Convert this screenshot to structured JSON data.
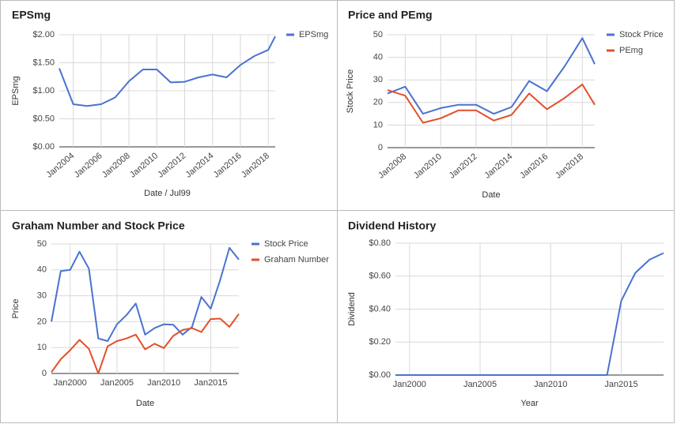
{
  "chart_data": [
    {
      "type": "line",
      "title": "EPSmg",
      "xlabel": "Date / Jul99",
      "ylabel": "EPSmg",
      "x": [
        2003,
        2004,
        2005,
        2006,
        2007,
        2008,
        2009,
        2010,
        2011,
        2012,
        2013,
        2014,
        2015,
        2016,
        2017,
        2018,
        2018.5
      ],
      "series": [
        {
          "name": "EPSmg",
          "color": "#4a72d1",
          "values": [
            1.4,
            0.76,
            0.73,
            0.76,
            0.88,
            1.17,
            1.38,
            1.38,
            1.15,
            1.16,
            1.24,
            1.29,
            1.24,
            1.46,
            1.62,
            1.73,
            1.97
          ]
        }
      ],
      "xlim": [
        2003,
        2018.5
      ],
      "xticks": [
        {
          "value": 2004,
          "label": "Jan2004"
        },
        {
          "value": 2006,
          "label": "Jan2006"
        },
        {
          "value": 2008,
          "label": "Jan2008"
        },
        {
          "value": 2010,
          "label": "Jan2010"
        },
        {
          "value": 2012,
          "label": "Jan2012"
        },
        {
          "value": 2014,
          "label": "Jan2014"
        },
        {
          "value": 2016,
          "label": "Jan2016"
        },
        {
          "value": 2018,
          "label": "Jan2018"
        }
      ],
      "ylim": [
        0,
        2
      ],
      "yticks": [
        {
          "value": 0,
          "label": "$0.00"
        },
        {
          "value": 0.5,
          "label": "$0.50"
        },
        {
          "value": 1,
          "label": "$1.00"
        },
        {
          "value": 1.5,
          "label": "$1.50"
        },
        {
          "value": 2,
          "label": "$2.00"
        }
      ],
      "grid": true,
      "legend": "right"
    },
    {
      "type": "line",
      "title": "Price and PEmg",
      "xlabel": "Date",
      "ylabel": "Stock Price",
      "x": [
        2007,
        2008,
        2009,
        2010,
        2011,
        2012,
        2013,
        2014,
        2015,
        2016,
        2017,
        2018,
        2018.7
      ],
      "series": [
        {
          "name": "Stock Price",
          "color": "#4a72d1",
          "values": [
            24,
            27,
            15,
            17.5,
            19,
            19,
            15,
            18,
            29.5,
            25,
            36,
            48.5,
            37
          ]
        },
        {
          "name": "PEmg",
          "color": "#e2502b",
          "values": [
            25.5,
            23,
            11,
            13,
            16.5,
            16.5,
            12,
            14.5,
            24,
            17,
            22,
            28,
            19
          ]
        }
      ],
      "xlim": [
        2007,
        2018.7
      ],
      "xticks": [
        {
          "value": 2008,
          "label": "Jan2008"
        },
        {
          "value": 2010,
          "label": "Jan2010"
        },
        {
          "value": 2012,
          "label": "Jan2012"
        },
        {
          "value": 2014,
          "label": "Jan2014"
        },
        {
          "value": 2016,
          "label": "Jan2016"
        },
        {
          "value": 2018,
          "label": "Jan2018"
        }
      ],
      "ylim": [
        0,
        50
      ],
      "yticks": [
        0,
        10,
        20,
        30,
        40,
        50
      ],
      "grid": true,
      "legend": "right"
    },
    {
      "type": "line",
      "title": "Graham Number and Stock Price",
      "xlabel": "Date",
      "ylabel": "Price",
      "x": [
        1998,
        1999,
        2000,
        2001,
        2002,
        2003,
        2004,
        2005,
        2006,
        2007,
        2008,
        2009,
        2010,
        2011,
        2012,
        2013,
        2014,
        2015,
        2016,
        2017,
        2018
      ],
      "series": [
        {
          "name": "Stock Price",
          "color": "#4a72d1",
          "values": [
            20,
            39.5,
            40,
            47,
            40.5,
            13.5,
            12.5,
            19,
            22.5,
            27,
            15,
            17.5,
            19,
            18.8,
            15,
            18,
            29.5,
            25,
            36,
            48.5,
            44
          ]
        },
        {
          "name": "Graham Number",
          "color": "#e2502b",
          "values": [
            0.5,
            5.5,
            9,
            13,
            9.5,
            0,
            10.5,
            12.5,
            13.5,
            15,
            9.3,
            11.5,
            9.8,
            14.5,
            16.8,
            17.5,
            16,
            21,
            21.2,
            18,
            23
          ]
        }
      ],
      "xlim": [
        1998,
        2018
      ],
      "xticks": [
        {
          "value": 2000,
          "label": "Jan2000"
        },
        {
          "value": 2005,
          "label": "Jan2005"
        },
        {
          "value": 2010,
          "label": "Jan2010"
        },
        {
          "value": 2015,
          "label": "Jan2015"
        }
      ],
      "ylim": [
        0,
        50
      ],
      "yticks": [
        0,
        10,
        20,
        30,
        40,
        50
      ],
      "grid": true,
      "legend": "right"
    },
    {
      "type": "line",
      "title": "Dividend History",
      "xlabel": "Year",
      "ylabel": "Dividend",
      "x": [
        1999,
        2000,
        2001,
        2002,
        2003,
        2004,
        2005,
        2006,
        2007,
        2008,
        2009,
        2010,
        2011,
        2012,
        2013,
        2014,
        2015,
        2016,
        2017,
        2018
      ],
      "series": [
        {
          "color": "#4a72d1",
          "values": [
            0,
            0,
            0,
            0,
            0,
            0,
            0,
            0,
            0,
            0,
            0,
            0,
            0,
            0,
            0,
            0,
            0.45,
            0.62,
            0.7,
            0.74
          ]
        }
      ],
      "xlim": [
        1999,
        2018
      ],
      "xticks": [
        {
          "value": 2000,
          "label": "Jan2000"
        },
        {
          "value": 2005,
          "label": "Jan2005"
        },
        {
          "value": 2010,
          "label": "Jan2010"
        },
        {
          "value": 2015,
          "label": "Jan2015"
        }
      ],
      "ylim": [
        0,
        0.8
      ],
      "yticks": [
        {
          "value": 0,
          "label": "$0.00"
        },
        {
          "value": 0.2,
          "label": "$0.20"
        },
        {
          "value": 0.4,
          "label": "$0.40"
        },
        {
          "value": 0.6,
          "label": "$0.60"
        },
        {
          "value": 0.8,
          "label": "$0.80"
        }
      ],
      "grid": true
    }
  ]
}
